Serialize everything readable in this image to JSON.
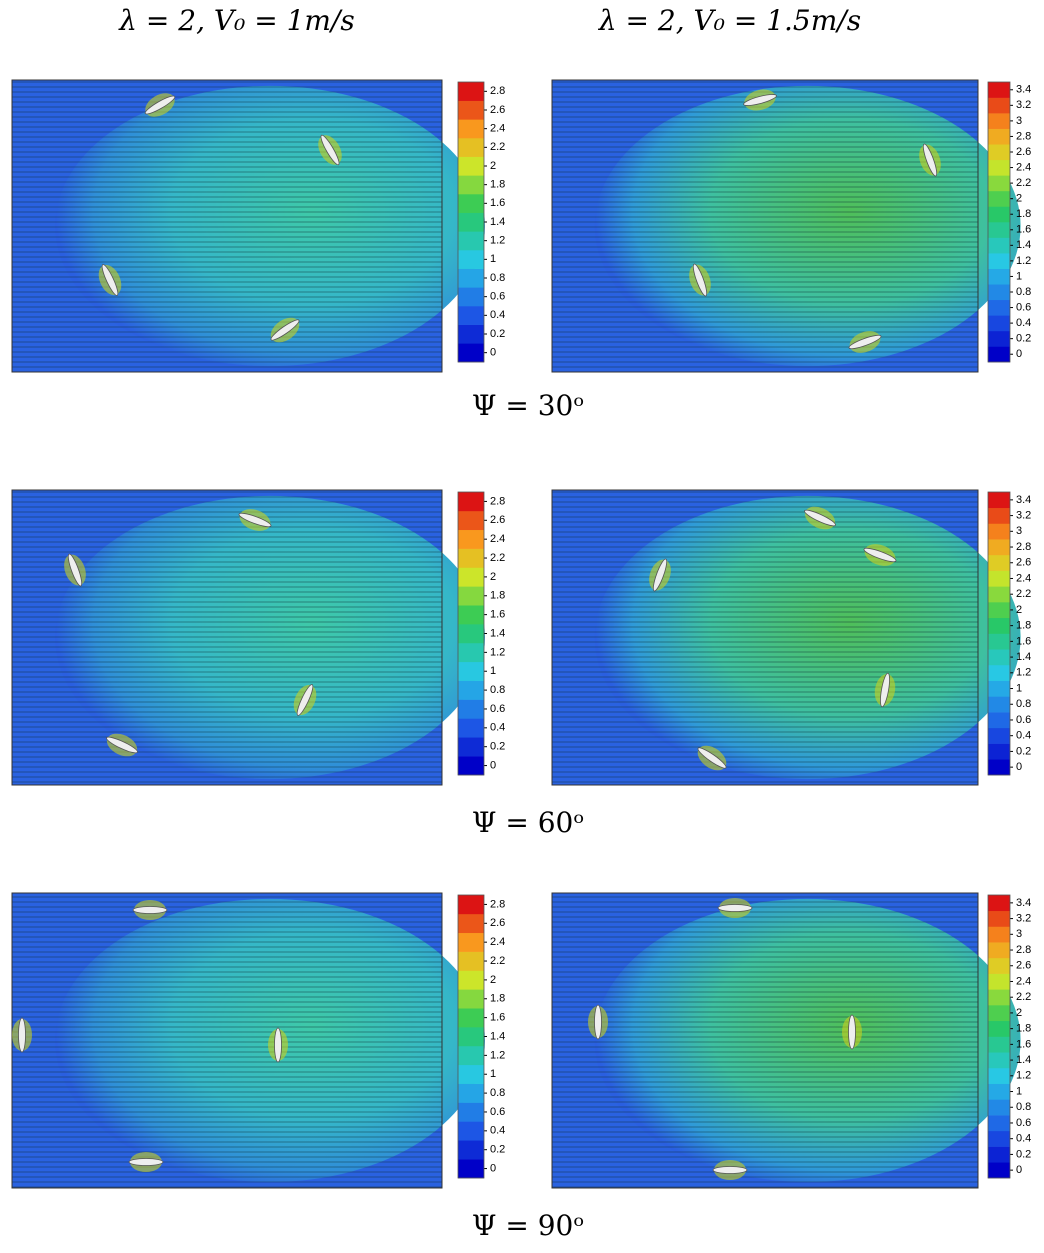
{
  "columns": [
    {
      "header": "λ = 2, V₀ = 1m/s"
    },
    {
      "header": "λ = 2, V₀ = 1.5m/s"
    }
  ],
  "rows": [
    {
      "label": "Ψ = 30ᵒ",
      "colorbars": [
        [
          0,
          0.2,
          0.4,
          0.6,
          0.8,
          1,
          1.2,
          1.4,
          1.6,
          1.8,
          2,
          2.2,
          2.4,
          2.6,
          2.8
        ],
        [
          0,
          0.2,
          0.4,
          0.6,
          0.8,
          1,
          1.2,
          1.4,
          1.6,
          1.8,
          2,
          2.2,
          2.4,
          2.6,
          2.8,
          3,
          3.2,
          3.4
        ]
      ]
    },
    {
      "label": "Ψ = 60ᵒ",
      "colorbars": [
        [
          0,
          0.2,
          0.4,
          0.6,
          0.8,
          1,
          1.2,
          1.4,
          1.6,
          1.8,
          2,
          2.2,
          2.4,
          2.6,
          2.8
        ],
        [
          0,
          0.2,
          0.4,
          0.6,
          0.8,
          1,
          1.2,
          1.4,
          1.6,
          1.8,
          2,
          2.2,
          2.4,
          2.6,
          2.8,
          3,
          3.2,
          3.4
        ]
      ]
    },
    {
      "label": "Ψ = 90ᵒ",
      "colorbars": [
        [
          0,
          0.2,
          0.4,
          0.6,
          0.8,
          1,
          1.2,
          1.4,
          1.6,
          1.8,
          2,
          2.2,
          2.4,
          2.6,
          2.8
        ],
        [
          0,
          0.2,
          0.4,
          0.6,
          0.8,
          1,
          1.2,
          1.4,
          1.6,
          1.8,
          2,
          2.2,
          2.4,
          2.6,
          2.8,
          3,
          3.2,
          3.4
        ]
      ]
    }
  ]
}
